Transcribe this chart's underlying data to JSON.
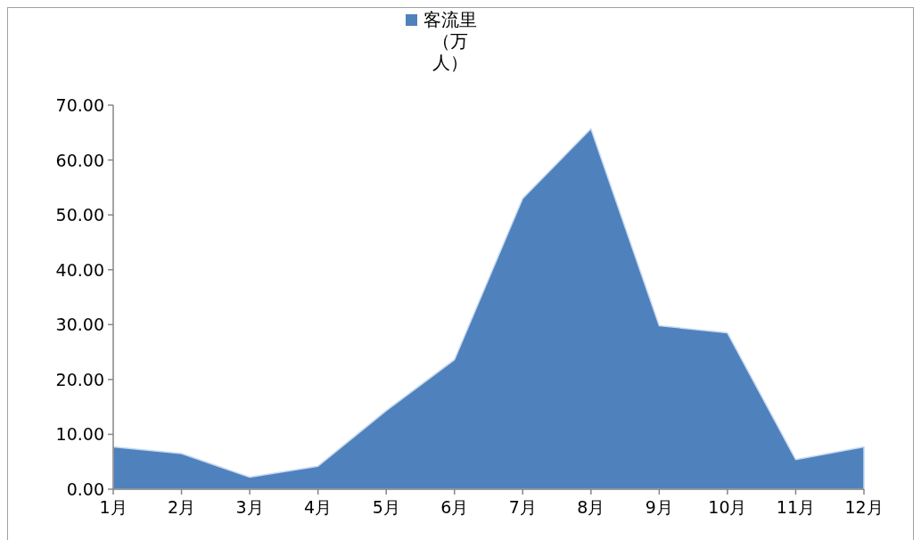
{
  "chart_data": {
    "type": "area",
    "categories": [
      "1月",
      "2月",
      "3月",
      "4月",
      "5月",
      "6月",
      "7月",
      "8月",
      "9月",
      "10月",
      "11月",
      "12月"
    ],
    "series": [
      {
        "name": "客流里（万人）",
        "color": "#4f81bd",
        "values": [
          7.7,
          6.5,
          2.2,
          4.2,
          14.3,
          23.6,
          53.0,
          65.7,
          29.8,
          28.5,
          5.4,
          7.7
        ]
      }
    ],
    "ylim": [
      0,
      70
    ],
    "yticks": [
      {
        "value": 0,
        "label": "0.00"
      },
      {
        "value": 10,
        "label": "10.00"
      },
      {
        "value": 20,
        "label": "20.00"
      },
      {
        "value": 30,
        "label": "30.00"
      },
      {
        "value": 40,
        "label": "40.00"
      },
      {
        "value": 50,
        "label": "50.00"
      },
      {
        "value": 60,
        "label": "60.00"
      },
      {
        "value": 70,
        "label": "70.00"
      }
    ],
    "legend": "top",
    "grid": false
  }
}
